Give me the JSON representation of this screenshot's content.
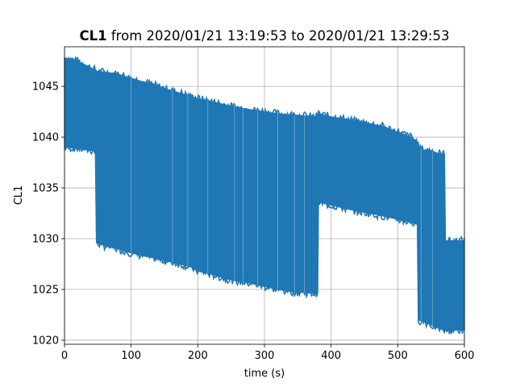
{
  "chart_data": {
    "type": "line",
    "title_bold": "CL1",
    "title_rest": " from 2020/01/21 13:19:53 to 2020/01/21 13:29:53",
    "xlabel": "time (s)",
    "ylabel": "CL1",
    "xlim": [
      0,
      600
    ],
    "ylim": [
      1019.6,
      1048.9
    ],
    "x_ticks": [
      0,
      100,
      200,
      300,
      400,
      500,
      600
    ],
    "y_ticks": [
      1020,
      1025,
      1030,
      1035,
      1040,
      1045
    ],
    "grid": true,
    "line_color": "#1f77b4",
    "series": [
      {
        "x": [
          0,
          20,
          40,
          47,
          48,
          60,
          80,
          100,
          120,
          140,
          160,
          180,
          190,
          200,
          220,
          240,
          260,
          280,
          300,
          320,
          340,
          360,
          375,
          380,
          381,
          400,
          420,
          440,
          460,
          480,
          500,
          520,
          530,
          531,
          540,
          550,
          560,
          570,
          571,
          585,
          600
        ],
        "upper": [
          1047.8,
          1047.5,
          1046.8,
          1046.6,
          1046.5,
          1046.4,
          1046.2,
          1045.8,
          1045.4,
          1045.0,
          1044.6,
          1044.2,
          1044.0,
          1043.8,
          1043.5,
          1043.2,
          1042.9,
          1042.7,
          1042.5,
          1042.3,
          1042.2,
          1042.1,
          1042.0,
          1042.1,
          1042.3,
          1042.0,
          1041.8,
          1041.5,
          1041.3,
          1041.0,
          1040.5,
          1040.0,
          1039.5,
          1039.0,
          1038.7,
          1038.7,
          1038.4,
          1038.3,
          1029.8,
          1029.8,
          1029.8
        ],
        "lower": [
          1039.0,
          1038.9,
          1038.7,
          1038.6,
          1029.6,
          1029.3,
          1029.0,
          1028.6,
          1028.3,
          1028.0,
          1027.7,
          1027.4,
          1027.2,
          1026.8,
          1026.5,
          1026.1,
          1025.8,
          1025.6,
          1025.3,
          1025.0,
          1024.8,
          1024.7,
          1024.6,
          1024.7,
          1033.6,
          1033.3,
          1033.0,
          1032.7,
          1032.5,
          1032.2,
          1031.9,
          1031.6,
          1031.4,
          1022.0,
          1021.8,
          1021.5,
          1021.2,
          1021.0,
          1021.0,
          1021.0,
          1021.0
        ]
      }
    ]
  }
}
